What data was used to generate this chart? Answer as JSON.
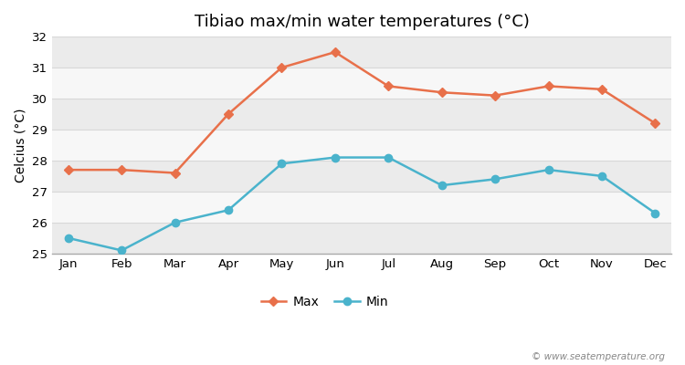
{
  "title": "Tibiao max/min water temperatures (°C)",
  "ylabel": "Celcius (°C)",
  "months": [
    "Jan",
    "Feb",
    "Mar",
    "Apr",
    "May",
    "Jun",
    "Jul",
    "Aug",
    "Sep",
    "Oct",
    "Nov",
    "Dec"
  ],
  "max_temps": [
    27.7,
    27.7,
    27.6,
    29.5,
    31.0,
    31.5,
    30.4,
    30.2,
    30.1,
    30.4,
    30.3,
    29.2
  ],
  "min_temps": [
    25.5,
    25.1,
    26.0,
    26.4,
    27.9,
    28.1,
    28.1,
    27.2,
    27.4,
    27.7,
    27.5,
    26.3
  ],
  "max_color": "#e8704a",
  "min_color": "#4ab3cc",
  "background_color": "#ffffff",
  "band_light": "#ebebeb",
  "band_white": "#f7f7f7",
  "grid_line_color": "#d8d8d8",
  "ylim": [
    25,
    32
  ],
  "yticks": [
    25,
    26,
    27,
    28,
    29,
    30,
    31,
    32
  ],
  "watermark": "© www.seatemperature.org",
  "legend_max": "Max",
  "legend_min": "Min",
  "title_fontsize": 13,
  "label_fontsize": 10,
  "tick_fontsize": 9.5
}
